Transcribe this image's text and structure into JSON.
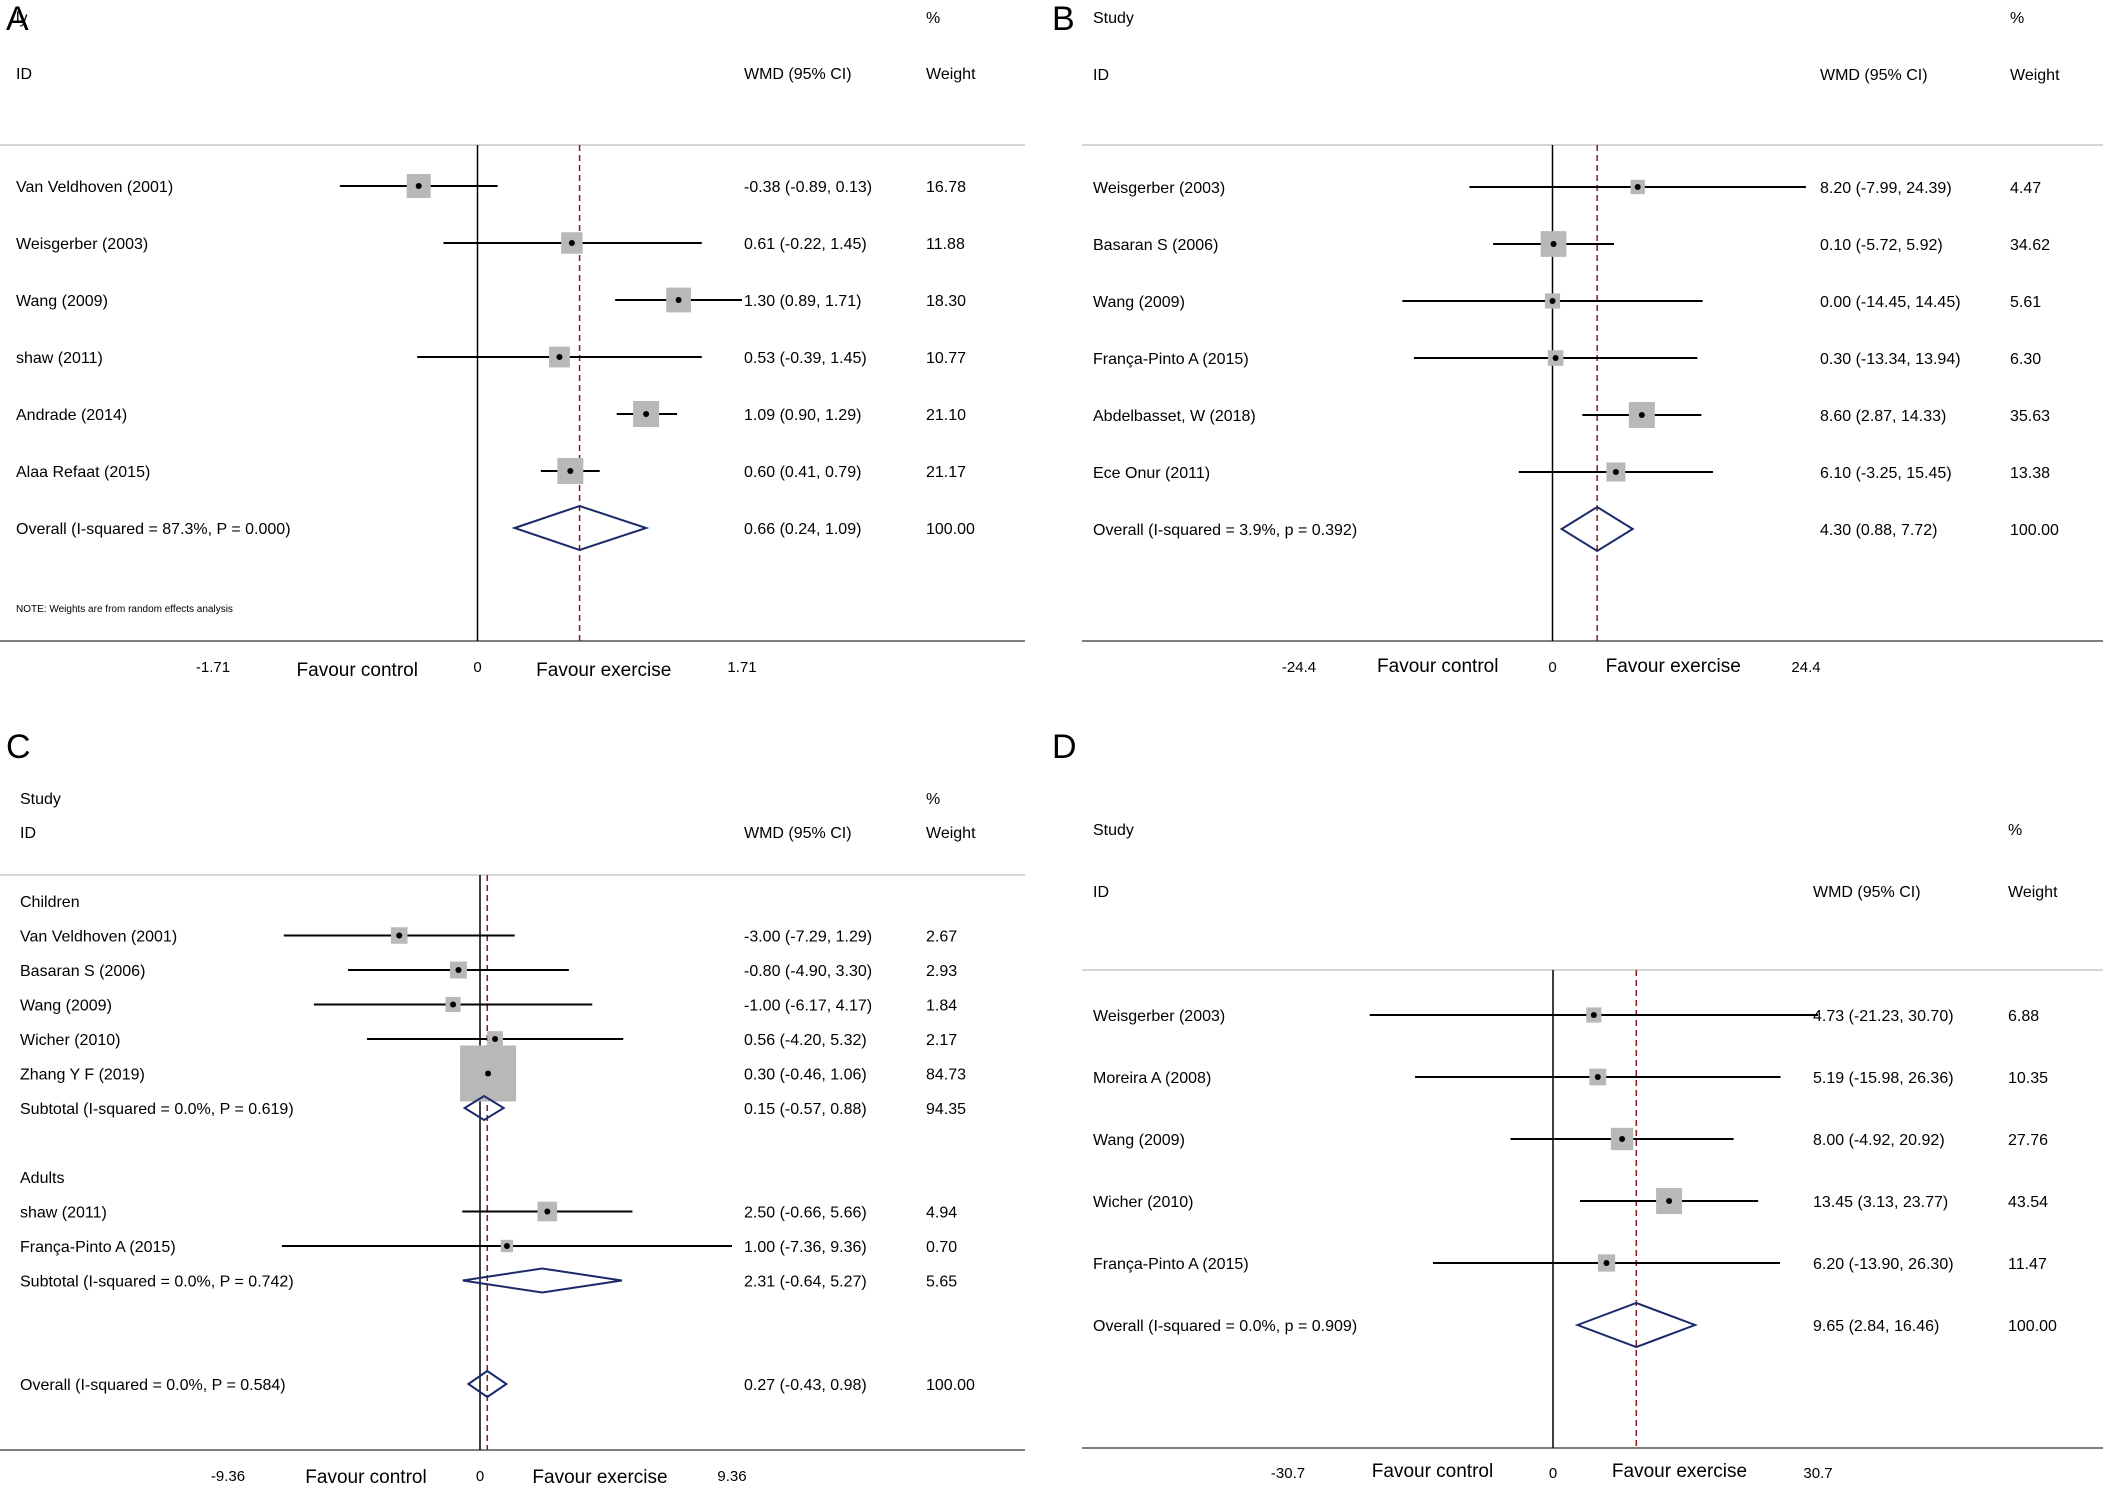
{
  "chart_data": [
    {
      "panel": "A",
      "type": "forest",
      "header": {
        "study": "ly",
        "id": "ID",
        "effect": "WMD (95% CI)",
        "pct": "%",
        "weight": "Weight"
      },
      "rows": [
        {
          "kind": "study",
          "label": "Van Veldhoven (2001)",
          "est": -0.38,
          "lo": -0.89,
          "hi": 0.13,
          "ci": "-0.38 (-0.89, 0.13)",
          "weight": "16.78",
          "w": 16.78
        },
        {
          "kind": "study",
          "label": "Weisgerber (2003)",
          "est": 0.61,
          "lo": -0.22,
          "hi": 1.45,
          "ci": "0.61 (-0.22, 1.45)",
          "weight": "11.88",
          "w": 11.88
        },
        {
          "kind": "study",
          "label": "Wang (2009)",
          "est": 1.3,
          "lo": 0.89,
          "hi": 1.71,
          "ci": "1.30 (0.89, 1.71)",
          "weight": "18.30",
          "w": 18.3
        },
        {
          "kind": "study",
          "label": "shaw (2011)",
          "est": 0.53,
          "lo": -0.39,
          "hi": 1.45,
          "ci": "0.53 (-0.39, 1.45)",
          "weight": "10.77",
          "w": 10.77
        },
        {
          "kind": "study",
          "label": "Andrade (2014)",
          "est": 1.09,
          "lo": 0.9,
          "hi": 1.29,
          "ci": "1.09 (0.90, 1.29)",
          "weight": "21.10",
          "w": 21.1
        },
        {
          "kind": "study",
          "label": "Alaa Refaat (2015)",
          "est": 0.6,
          "lo": 0.41,
          "hi": 0.79,
          "ci": "0.60 (0.41, 0.79)",
          "weight": "21.17",
          "w": 21.17
        },
        {
          "kind": "overall",
          "label": "Overall  (I-squared = 87.3%, P = 0.000)",
          "est": 0.66,
          "lo": 0.24,
          "hi": 1.09,
          "ci": "0.66 (0.24, 1.09)",
          "weight": "100.00"
        }
      ],
      "note": "NOTE: Weights are from random effects analysis",
      "axis": {
        "min": -1.71,
        "max": 1.71,
        "ticks": [
          "-1.71",
          "0",
          "1.71"
        ],
        "left_label": "Favour control",
        "right_label": "Favour exercise"
      }
    },
    {
      "panel": "B",
      "type": "forest",
      "header": {
        "study": "Study",
        "id": "ID",
        "effect": "WMD (95% CI)",
        "pct": "%",
        "weight": "Weight"
      },
      "rows": [
        {
          "kind": "study",
          "label": "Weisgerber (2003)",
          "est": 8.2,
          "lo": -7.99,
          "hi": 24.39,
          "ci": "8.20 (-7.99, 24.39)",
          "weight": "4.47",
          "w": 4.47
        },
        {
          "kind": "study",
          "label": "Basaran S (2006)",
          "est": 0.1,
          "lo": -5.72,
          "hi": 5.92,
          "ci": "0.10 (-5.72, 5.92)",
          "weight": "34.62",
          "w": 34.62
        },
        {
          "kind": "study",
          "label": "Wang (2009)",
          "est": 0.0,
          "lo": -14.45,
          "hi": 14.45,
          "ci": "0.00 (-14.45, 14.45)",
          "weight": "5.61",
          "w": 5.61
        },
        {
          "kind": "study",
          "label": "França-Pinto A (2015)",
          "est": 0.3,
          "lo": -13.34,
          "hi": 13.94,
          "ci": "0.30 (-13.34, 13.94)",
          "weight": "6.30",
          "w": 6.3
        },
        {
          "kind": "study",
          "label": "Abdelbasset, W (2018)",
          "est": 8.6,
          "lo": 2.87,
          "hi": 14.33,
          "ci": "8.60 (2.87, 14.33)",
          "weight": "35.63",
          "w": 35.63
        },
        {
          "kind": "study",
          "label": "Ece Onur (2011)",
          "est": 6.1,
          "lo": -3.25,
          "hi": 15.45,
          "ci": "6.10 (-3.25, 15.45)",
          "weight": "13.38",
          "w": 13.38
        },
        {
          "kind": "overall",
          "label": "Overall  (I-squared = 3.9%, p = 0.392)",
          "est": 4.3,
          "lo": 0.88,
          "hi": 7.72,
          "ci": "4.30 (0.88, 7.72)",
          "weight": "100.00"
        }
      ],
      "note": "",
      "axis": {
        "min": -24.4,
        "max": 24.4,
        "ticks": [
          "-24.4",
          "0",
          "24.4"
        ],
        "left_label": "Favour control",
        "right_label": "Favour exercise"
      }
    },
    {
      "panel": "C",
      "type": "forest",
      "header": {
        "study": "Study",
        "id": "ID",
        "effect": "WMD (95% CI)",
        "pct": "%",
        "weight": "Weight"
      },
      "rows": [
        {
          "kind": "group",
          "label": "Children"
        },
        {
          "kind": "study",
          "label": "Van Veldhoven (2001)",
          "est": -3.0,
          "lo": -7.29,
          "hi": 1.29,
          "ci": "-3.00 (-7.29, 1.29)",
          "weight": "2.67",
          "w": 2.67
        },
        {
          "kind": "study",
          "label": "Basaran S (2006)",
          "est": -0.8,
          "lo": -4.9,
          "hi": 3.3,
          "ci": "-0.80 (-4.90, 3.30)",
          "weight": "2.93",
          "w": 2.93
        },
        {
          "kind": "study",
          "label": "Wang (2009)",
          "est": -1.0,
          "lo": -6.17,
          "hi": 4.17,
          "ci": "-1.00 (-6.17, 4.17)",
          "weight": "1.84",
          "w": 1.84
        },
        {
          "kind": "study",
          "label": "Wicher (2010)",
          "est": 0.56,
          "lo": -4.2,
          "hi": 5.32,
          "ci": "0.56 (-4.20, 5.32)",
          "weight": "2.17",
          "w": 2.17
        },
        {
          "kind": "study",
          "label": "Zhang Y F  (2019)",
          "est": 0.3,
          "lo": -0.46,
          "hi": 1.06,
          "ci": "0.30 (-0.46, 1.06)",
          "weight": "84.73",
          "w": 84.73
        },
        {
          "kind": "subtotal",
          "label": "Subtotal  (I-squared = 0.0%, P = 0.619)",
          "est": 0.15,
          "lo": -0.57,
          "hi": 0.88,
          "ci": "0.15 (-0.57, 0.88)",
          "weight": "94.35"
        },
        {
          "kind": "spacer"
        },
        {
          "kind": "group",
          "label": "Adults"
        },
        {
          "kind": "study",
          "label": "shaw (2011)",
          "est": 2.5,
          "lo": -0.66,
          "hi": 5.66,
          "ci": "2.50 (-0.66, 5.66)",
          "weight": "4.94",
          "w": 4.94
        },
        {
          "kind": "study",
          "label": "França-Pinto A (2015)",
          "est": 1.0,
          "lo": -7.36,
          "hi": 9.36,
          "ci": "1.00 (-7.36, 9.36)",
          "weight": "0.70",
          "w": 0.7
        },
        {
          "kind": "subtotal",
          "label": "Subtotal  (I-squared = 0.0%, P = 0.742)",
          "est": 2.31,
          "lo": -0.64,
          "hi": 5.27,
          "ci": "2.31 (-0.64, 5.27)",
          "weight": "5.65"
        },
        {
          "kind": "spacer"
        },
        {
          "kind": "spacer"
        },
        {
          "kind": "overall",
          "label": "Overall  (I-squared = 0.0%, P = 0.584)",
          "est": 0.27,
          "lo": -0.43,
          "hi": 0.98,
          "ci": "0.27 (-0.43, 0.98)",
          "weight": "100.00"
        }
      ],
      "note": "",
      "axis": {
        "min": -9.36,
        "max": 9.36,
        "ticks": [
          "-9.36",
          "0",
          "9.36"
        ],
        "left_label": "Favour control",
        "right_label": "Favour exercise"
      }
    },
    {
      "panel": "D",
      "type": "forest",
      "header": {
        "study": "Study",
        "id": "ID",
        "effect": "WMD (95% CI)",
        "pct": "%",
        "weight": "Weight"
      },
      "rows": [
        {
          "kind": "study",
          "label": "Weisgerber (2003)",
          "est": 4.73,
          "lo": -21.23,
          "hi": 30.7,
          "ci": "4.73 (-21.23, 30.70)",
          "weight": "6.88",
          "w": 6.88
        },
        {
          "kind": "study",
          "label": "Moreira A (2008)",
          "est": 5.19,
          "lo": -15.98,
          "hi": 26.36,
          "ci": "5.19 (-15.98, 26.36)",
          "weight": "10.35",
          "w": 10.35
        },
        {
          "kind": "study",
          "label": "Wang (2009)",
          "est": 8.0,
          "lo": -4.92,
          "hi": 20.92,
          "ci": "8.00 (-4.92, 20.92)",
          "weight": "27.76",
          "w": 27.76
        },
        {
          "kind": "study",
          "label": "Wicher (2010)",
          "est": 13.45,
          "lo": 3.13,
          "hi": 23.77,
          "ci": "13.45 (3.13, 23.77)",
          "weight": "43.54",
          "w": 43.54
        },
        {
          "kind": "study",
          "label": "França-Pinto A (2015)",
          "est": 6.2,
          "lo": -13.9,
          "hi": 26.3,
          "ci": "6.20 (-13.90, 26.30)",
          "weight": "11.47",
          "w": 11.47
        },
        {
          "kind": "overall",
          "label": "Overall  (I-squared = 0.0%, p = 0.909)",
          "est": 9.65,
          "lo": 2.84,
          "hi": 16.46,
          "ci": "9.65 (2.84, 16.46)",
          "weight": "100.00"
        }
      ],
      "note": "",
      "axis": {
        "min": -30.7,
        "max": 30.7,
        "ticks": [
          "-30.7",
          "0",
          "30.7"
        ],
        "left_label": "Favour control",
        "right_label": "Favour exercise"
      }
    }
  ],
  "colors": {
    "diamond": "#1c2a6b",
    "reference": "#8b1a1a",
    "box": "#b8b8b8",
    "line": "#000000",
    "rule": "#c8c8c8"
  }
}
